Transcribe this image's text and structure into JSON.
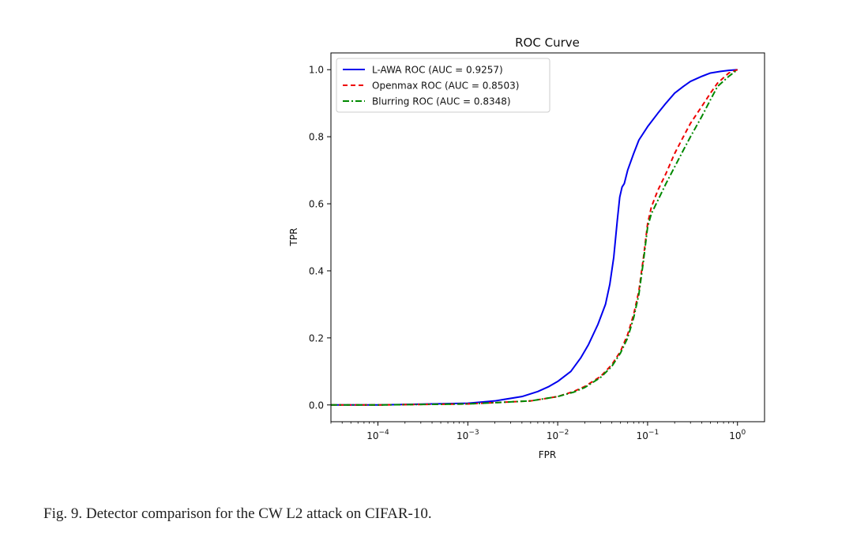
{
  "chart_data": {
    "type": "line",
    "title": "ROC Curve",
    "xlabel": "FPR",
    "ylabel": "TPR",
    "xscale": "log",
    "xlim": [
      3e-05,
      2
    ],
    "ylim": [
      -0.05,
      1.05
    ],
    "x_ticks": [
      {
        "value": 0.0001,
        "base": "10",
        "exp": "−4"
      },
      {
        "value": 0.001,
        "base": "10",
        "exp": "−3"
      },
      {
        "value": 0.01,
        "base": "10",
        "exp": "−2"
      },
      {
        "value": 0.1,
        "base": "10",
        "exp": "−1"
      },
      {
        "value": 1,
        "base": "10",
        "exp": "0"
      }
    ],
    "y_ticks": [
      {
        "value": 0.0,
        "label": "0.0"
      },
      {
        "value": 0.2,
        "label": "0.2"
      },
      {
        "value": 0.4,
        "label": "0.4"
      },
      {
        "value": 0.6,
        "label": "0.6"
      },
      {
        "value": 0.8,
        "label": "0.8"
      },
      {
        "value": 1.0,
        "label": "1.0"
      }
    ],
    "legend_position": "top-left",
    "series": [
      {
        "name": "L-AWA ROC (AUC = 0.9257)",
        "color": "#0000ee",
        "style": "solid",
        "x": [
          3e-05,
          0.0001,
          0.001,
          0.002,
          0.004,
          0.006,
          0.008,
          0.01,
          0.014,
          0.018,
          0.022,
          0.028,
          0.034,
          0.038,
          0.042,
          0.046,
          0.049,
          0.052,
          0.055,
          0.06,
          0.07,
          0.08,
          0.1,
          0.13,
          0.16,
          0.2,
          0.25,
          0.3,
          0.4,
          0.5,
          0.65,
          0.8,
          1.0
        ],
        "y": [
          0.0,
          0.0,
          0.005,
          0.012,
          0.025,
          0.04,
          0.055,
          0.07,
          0.1,
          0.14,
          0.18,
          0.24,
          0.3,
          0.36,
          0.44,
          0.55,
          0.62,
          0.65,
          0.66,
          0.7,
          0.75,
          0.79,
          0.83,
          0.87,
          0.9,
          0.93,
          0.95,
          0.965,
          0.98,
          0.99,
          0.995,
          0.998,
          1.0
        ]
      },
      {
        "name": "Openmax ROC (AUC = 0.8503)",
        "color": "#ee0000",
        "style": "dashed",
        "x": [
          3e-05,
          0.0001,
          0.001,
          0.005,
          0.01,
          0.015,
          0.02,
          0.03,
          0.04,
          0.05,
          0.06,
          0.07,
          0.08,
          0.09,
          0.1,
          0.11,
          0.13,
          0.16,
          0.2,
          0.25,
          0.3,
          0.4,
          0.5,
          0.6,
          0.8,
          1.0
        ],
        "y": [
          0.0,
          0.0,
          0.003,
          0.012,
          0.025,
          0.04,
          0.055,
          0.085,
          0.12,
          0.16,
          0.21,
          0.27,
          0.34,
          0.44,
          0.54,
          0.59,
          0.64,
          0.69,
          0.75,
          0.8,
          0.84,
          0.89,
          0.93,
          0.96,
          0.99,
          1.0
        ]
      },
      {
        "name": "Blurring ROC (AUC = 0.8348)",
        "color": "#008800",
        "style": "dashdot",
        "x": [
          3e-05,
          0.0001,
          0.001,
          0.005,
          0.01,
          0.015,
          0.02,
          0.03,
          0.04,
          0.05,
          0.06,
          0.07,
          0.08,
          0.09,
          0.1,
          0.11,
          0.13,
          0.16,
          0.2,
          0.25,
          0.3,
          0.4,
          0.5,
          0.6,
          0.8,
          1.0
        ],
        "y": [
          0.0,
          0.0,
          0.003,
          0.012,
          0.025,
          0.038,
          0.052,
          0.082,
          0.115,
          0.155,
          0.2,
          0.26,
          0.33,
          0.43,
          0.53,
          0.57,
          0.61,
          0.66,
          0.71,
          0.76,
          0.8,
          0.86,
          0.91,
          0.95,
          0.98,
          1.0
        ]
      }
    ]
  },
  "caption": "Fig. 9.  Detector comparison for the CW L2 attack on CIFAR-10."
}
